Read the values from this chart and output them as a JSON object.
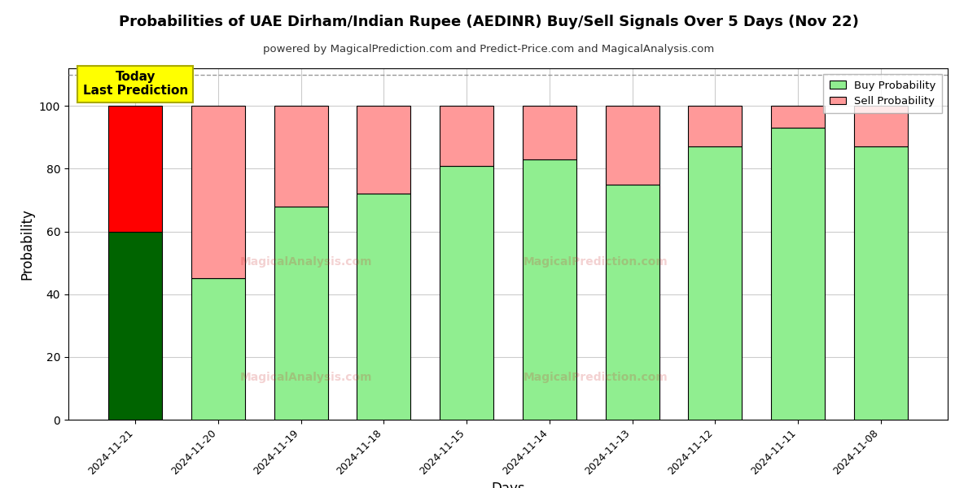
{
  "title": "Probabilities of UAE Dirham/Indian Rupee (AEDINR) Buy/Sell Signals Over 5 Days (Nov 22)",
  "subtitle": "powered by MagicalPrediction.com and Predict-Price.com and MagicalAnalysis.com",
  "xlabel": "Days",
  "ylabel": "Probability",
  "categories": [
    "2024-11-21",
    "2024-11-20",
    "2024-11-19",
    "2024-11-18",
    "2024-11-15",
    "2024-11-14",
    "2024-11-13",
    "2024-11-12",
    "2024-11-11",
    "2024-11-08"
  ],
  "buy_values": [
    60,
    45,
    68,
    72,
    81,
    83,
    75,
    87,
    93,
    87
  ],
  "sell_values": [
    40,
    55,
    32,
    28,
    19,
    17,
    25,
    13,
    7,
    13
  ],
  "buy_colors_special": [
    "#006400",
    "#90EE90",
    "#90EE90",
    "#90EE90",
    "#90EE90",
    "#90EE90",
    "#90EE90",
    "#90EE90",
    "#90EE90",
    "#90EE90"
  ],
  "sell_colors_special": [
    "#FF0000",
    "#FF9999",
    "#FF9999",
    "#FF9999",
    "#FF9999",
    "#FF9999",
    "#FF9999",
    "#FF9999",
    "#FF9999",
    "#FF9999"
  ],
  "buy_legend_color": "#90EE90",
  "sell_legend_color": "#FF9999",
  "ylim": [
    0,
    112
  ],
  "dashed_line_y": 110,
  "annotation_text": "Today\nLast Prediction",
  "annotation_bg_color": "#FFFF00",
  "bg_color": "#FFFFFF",
  "grid_color": "#CCCCCC",
  "bar_edge_color": "#000000",
  "bar_width": 0.65
}
